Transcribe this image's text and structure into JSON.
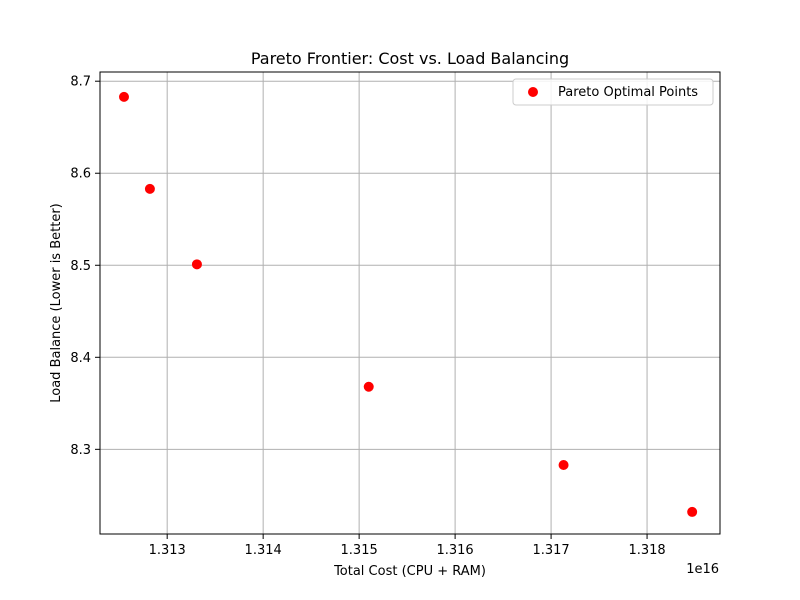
{
  "chart_data": {
    "type": "scatter",
    "title": "Pareto Frontier: Cost vs. Load Balancing",
    "xlabel": "Total Cost (CPU + RAM)",
    "ylabel": "Load Balance (Lower is Better)",
    "x_offset_label": "1e16",
    "x_scale": 1e+16,
    "xlim": [
      1.3123,
      1.31876
    ],
    "ylim": [
      8.208,
      8.71
    ],
    "x_ticks": [
      1.313,
      1.314,
      1.315,
      1.316,
      1.317,
      1.318
    ],
    "x_tick_labels": [
      "1.313",
      "1.314",
      "1.315",
      "1.316",
      "1.317",
      "1.318"
    ],
    "y_ticks": [
      8.3,
      8.4,
      8.5,
      8.6,
      8.7
    ],
    "y_tick_labels": [
      "8.3",
      "8.4",
      "8.5",
      "8.6",
      "8.7"
    ],
    "grid": true,
    "legend_position": "upper right",
    "series": [
      {
        "name": "Pareto Optimal Points",
        "color": "#ff0000",
        "marker": "circle",
        "x": [
          1.31255,
          1.31282,
          1.31331,
          1.3151,
          1.31713,
          1.31847
        ],
        "y": [
          8.683,
          8.583,
          8.501,
          8.368,
          8.283,
          8.232
        ]
      }
    ]
  }
}
